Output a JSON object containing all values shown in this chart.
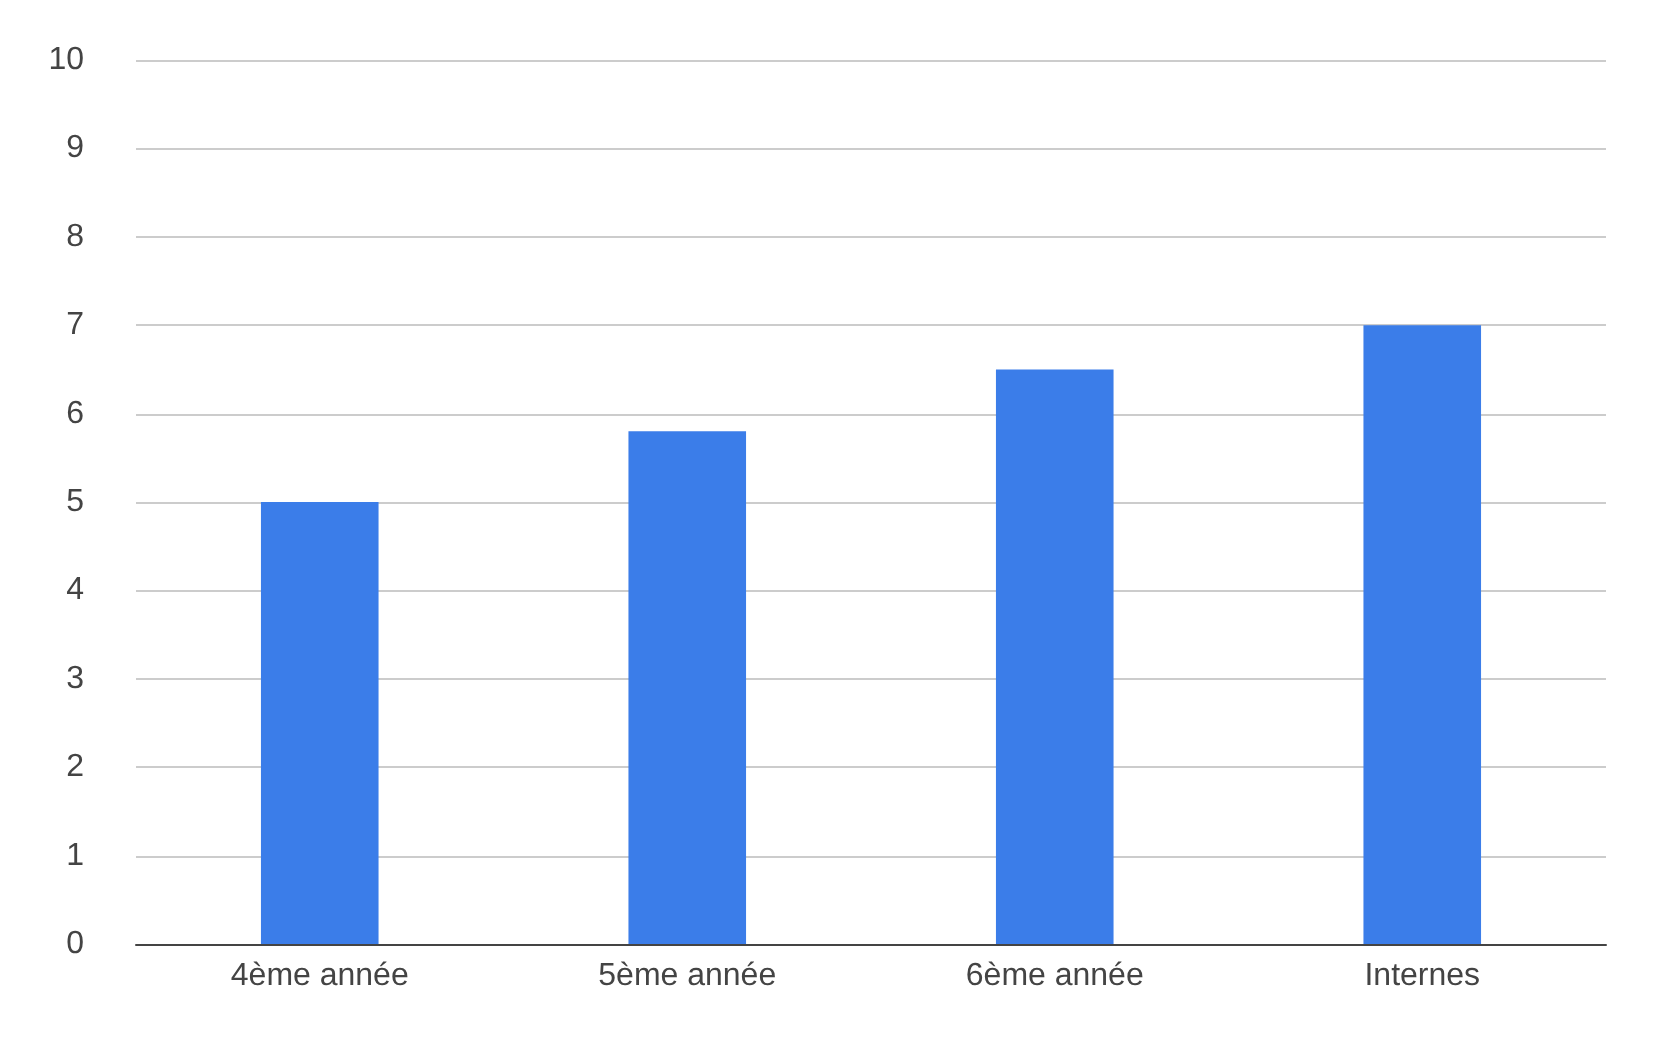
{
  "chart_data": {
    "type": "bar",
    "categories": [
      "4ème année",
      "5ème année",
      "6ème année",
      "Internes"
    ],
    "values": [
      5,
      5.8,
      6.5,
      7
    ],
    "color": "#3b7de9",
    "ylim": [
      0,
      10
    ],
    "yticks": [
      0,
      1,
      2,
      3,
      4,
      5,
      6,
      7,
      8,
      9,
      10
    ],
    "grid": "y"
  }
}
